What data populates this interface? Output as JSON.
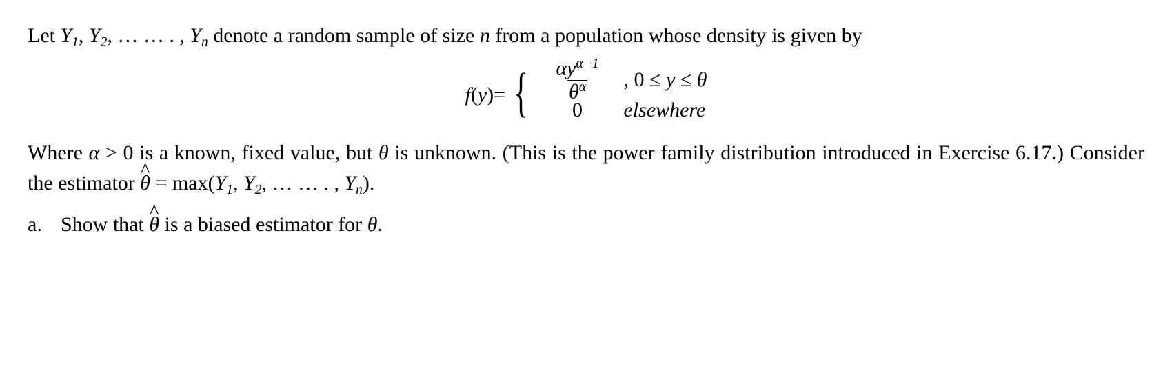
{
  "text": {
    "intro_a": "Let ",
    "intro_b": " denote a random sample of size ",
    "intro_c": " from a population whose density is given by",
    "seq_comma": ", ",
    "seq_dots": "… … . ,",
    "fy_eq": " = ",
    "cond1_a": ", 0 ≤ ",
    "cond1_b": " ≤ ",
    "cond2": "elsewhere",
    "zero": "0",
    "where_a": "Where ",
    "where_b": " > 0 is a known, fixed value, but ",
    "where_c": " is unknown. (This is the power family distribution introduced in Exercise 6.17.) Consider the estimator ",
    "where_d": "  =  max(",
    "where_e": ").",
    "part_a_label": "a.",
    "part_a_text_1": "Show that ",
    "part_a_text_2": "  is a biased estimator for ",
    "part_a_text_3": "."
  },
  "sym": {
    "Y": "Y",
    "n": "n",
    "one": "1",
    "two": "2",
    "f": "f",
    "y": "y",
    "alpha": "α",
    "theta": "θ",
    "alpha_m1": "α−1",
    "hat": "^",
    "lparen": "(",
    "rparen": ")"
  }
}
